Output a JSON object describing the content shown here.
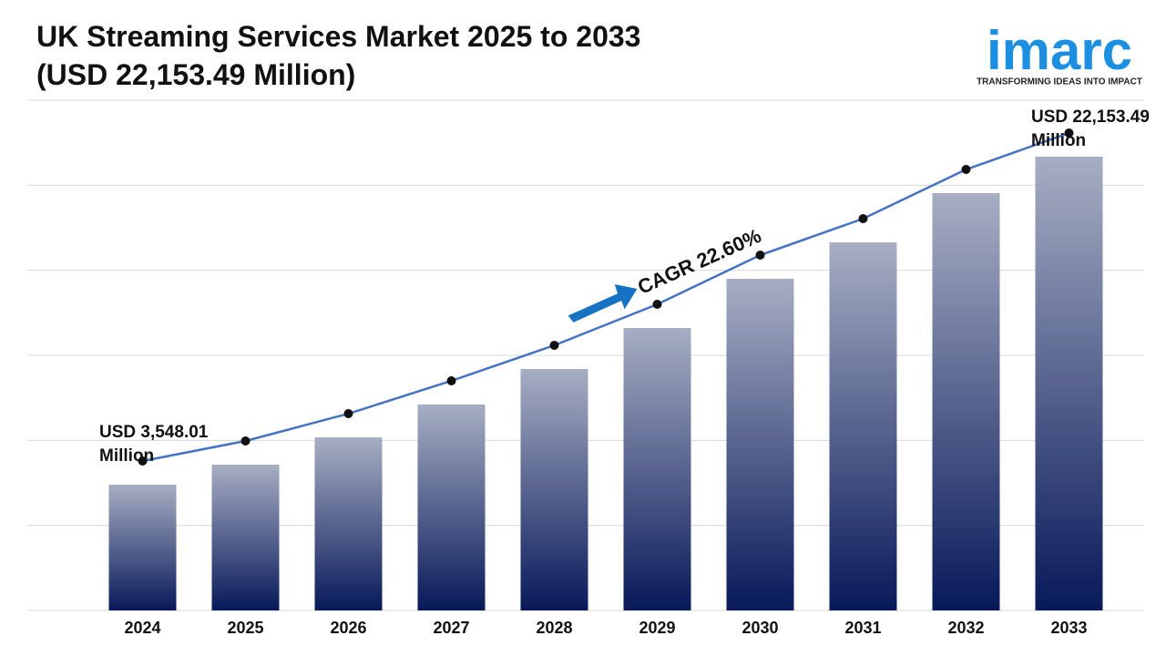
{
  "chart_data": {
    "type": "bar",
    "title": "UK Streaming Services Market 2025 to 2033",
    "subtitle": "(USD 22,153.49 Million)",
    "categories": [
      "2024",
      "2025",
      "2026",
      "2027",
      "2028",
      "2029",
      "2030",
      "2031",
      "2032",
      "2033"
    ],
    "values": [
      3548.01,
      4685,
      6235,
      8096,
      10111,
      12437,
      15227,
      17294,
      20085,
      22153.49
    ],
    "value_labels": [
      "USD 3,548.01 Million",
      null,
      null,
      null,
      null,
      null,
      null,
      null,
      null,
      "USD 22,153.49 Million"
    ],
    "ylim": [
      -3584,
      25357
    ],
    "bar_gradient": [
      "#a7aec3",
      "#08195a"
    ],
    "line_color": "#4472c4",
    "annotation": "CAGR 22.60%",
    "grid": true
  },
  "logo": {
    "name": "imarc",
    "tagline": "TRANSFORMING IDEAS INTO IMPACT"
  }
}
